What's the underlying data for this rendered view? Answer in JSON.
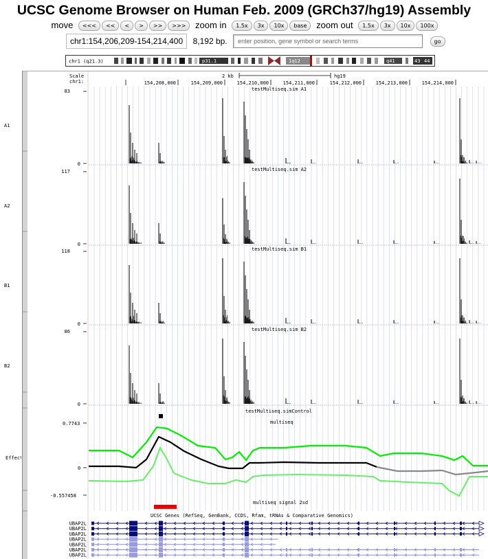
{
  "title": "UCSC Genome Browser on Human Feb. 2009 (GRCh37/hg19) Assembly",
  "nav": {
    "move_label": "move",
    "move_buttons": [
      "<<<",
      "<<",
      "<",
      ">",
      ">>",
      ">>>"
    ],
    "zoom_in_label": "zoom in",
    "zoom_in_buttons": [
      "1.5x",
      "3x",
      "10x",
      "base"
    ],
    "zoom_out_label": "zoom out",
    "zoom_out_buttons": [
      "1.5x",
      "3x",
      "10x",
      "100x"
    ]
  },
  "position": {
    "value": "chr1:154,206,209-154,214,400",
    "size": "8,192 bp.",
    "search_placeholder": "enter position, gene symbol or search terms",
    "go_label": "go"
  },
  "ideogram": {
    "chrom_label": "chr1 (q21.3)",
    "band_labels": [
      "p31.1",
      "1q12",
      "q41",
      "43",
      "44"
    ],
    "highlight_color": "#cc0000"
  },
  "ruler": {
    "scale_label": "Scale",
    "chrom_label": "chr1:",
    "scale_text": "2 kb",
    "assembly_text": "hg19",
    "ticks": [
      "154,208,000",
      "154,209,000",
      "154,210,000",
      "154,211,000",
      "154,212,000",
      "154,213,000",
      "154,214,000"
    ]
  },
  "tracks": [
    {
      "name": "A1",
      "title": "testMultiseq.sim A1",
      "max": "83",
      "min": "0"
    },
    {
      "name": "A2",
      "title": "testMultiseq.sim A2",
      "max": "117",
      "min": "0"
    },
    {
      "name": "B1",
      "title": "testMultiseq.sim B1",
      "max": "118",
      "min": "0"
    },
    {
      "name": "B2",
      "title": "testMultiseq.sim B2",
      "max": "86",
      "min": "0"
    }
  ],
  "control": {
    "title": "testMultiseq.simControl"
  },
  "effect": {
    "side_label": "Effect",
    "title": "multiseq",
    "max": "0.7743",
    "zero": "0",
    "min": "-0.557458",
    "signal_label": "multiseq signal 2sd",
    "colors": {
      "upper": "#00ee00",
      "mean": "#000000",
      "lower": "#66ee66",
      "gray": "#888888",
      "signal": "#ee0000"
    }
  },
  "genes": {
    "title": "UCSC Genes (RefSeq, GenBank, CCDS, Rfam, tRNAs & Comparative Genomics)",
    "labels": [
      "UBAP2L",
      "UBAP2L",
      "UBAP2L",
      "UBAP2L",
      "UBAP2L",
      "UBAP2L",
      "UBAP2L"
    ],
    "color": "#0c0c78"
  }
}
